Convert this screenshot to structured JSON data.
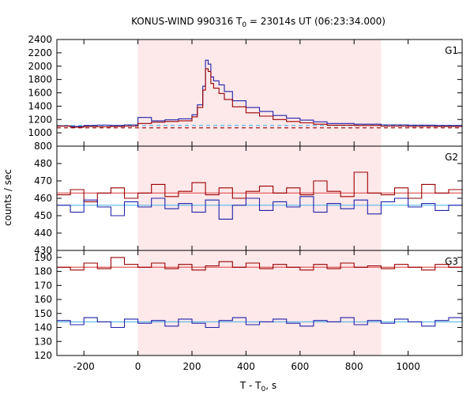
{
  "chart_data": {
    "type": "line",
    "title": {
      "prefix": "KONUS-WIND 990316 T",
      "sub": "0",
      "suffix": " = 23014s UT (06:23:34.000)"
    },
    "xlabel": {
      "prefix": "T - T",
      "sub": "0",
      "suffix": ", s"
    },
    "ylabel": "counts / sec",
    "xlim": [
      -300,
      1200
    ],
    "xticks": [
      -200,
      0,
      200,
      400,
      600,
      800,
      1000
    ],
    "highlight_interval": [
      0,
      900
    ],
    "colors": {
      "series_red": "#990000",
      "series_blue": "#2222aa",
      "fit_red": "#e06060",
      "fit_blue": "#55b8e8",
      "highlight": "#fde8ea"
    },
    "panels": [
      {
        "label": "G1",
        "ylim": [
          800,
          2400
        ],
        "yticks": [
          800,
          1000,
          1200,
          1400,
          1600,
          1800,
          2000,
          2200,
          2400
        ],
        "series": [
          {
            "color": "series_blue",
            "x": [
              -300,
              -250,
              -200,
              -150,
              -100,
              -50,
              0,
              50,
              100,
              150,
              200,
              220,
              240,
              250,
              260,
              270,
              280,
              300,
              320,
              350,
              400,
              450,
              500,
              550,
              600,
              650,
              700,
              800,
              900,
              1000,
              1100,
              1200
            ],
            "y": [
              1105,
              1095,
              1110,
              1115,
              1110,
              1120,
              1230,
              1180,
              1195,
              1210,
              1270,
              1420,
              1700,
              2090,
              2030,
              1840,
              1780,
              1720,
              1620,
              1480,
              1380,
              1320,
              1260,
              1220,
              1190,
              1165,
              1140,
              1130,
              1120,
              1115,
              1110,
              1105
            ]
          },
          {
            "color": "series_red",
            "x": [
              -300,
              -250,
              -200,
              -150,
              -100,
              -50,
              0,
              50,
              100,
              150,
              200,
              220,
              240,
              250,
              260,
              270,
              280,
              300,
              320,
              350,
              400,
              450,
              500,
              550,
              600,
              650,
              700,
              800,
              900,
              1000,
              1100,
              1200
            ],
            "y": [
              1100,
              1085,
              1095,
              1090,
              1095,
              1100,
              1140,
              1160,
              1170,
              1180,
              1240,
              1380,
              1640,
              1960,
              1920,
              1740,
              1670,
              1590,
              1500,
              1390,
              1300,
              1250,
              1200,
              1170,
              1150,
              1130,
              1115,
              1110,
              1100,
              1095,
              1095,
              1090
            ]
          }
        ],
        "fits": [
          {
            "color": "fit_blue",
            "dashed": true,
            "x": [
              -300,
              1200
            ],
            "y": [
              1110,
              1110
            ]
          },
          {
            "color": "series_red",
            "dashed": true,
            "x": [
              -300,
              1200
            ],
            "y": [
              1075,
              1075
            ]
          }
        ]
      },
      {
        "label": "G2",
        "ylim": [
          430,
          490
        ],
        "yticks": [
          430,
          440,
          450,
          460,
          470,
          480
        ],
        "series": [
          {
            "color": "series_red",
            "x": [
              -300,
              -250,
              -200,
              -150,
              -100,
              -50,
              0,
              50,
              100,
              150,
              200,
              250,
              300,
              350,
              400,
              450,
              500,
              550,
              600,
              650,
              700,
              750,
              800,
              850,
              900,
              950,
              1000,
              1050,
              1100,
              1150,
              1200
            ],
            "y": [
              462,
              465,
              458,
              463,
              466,
              460,
              463,
              468,
              461,
              464,
              469,
              462,
              466,
              460,
              464,
              467,
              463,
              466,
              462,
              470,
              464,
              461,
              475,
              463,
              462,
              466,
              460,
              468,
              463,
              465,
              462
            ]
          },
          {
            "color": "series_blue",
            "x": [
              -300,
              -250,
              -200,
              -150,
              -100,
              -50,
              0,
              50,
              100,
              150,
              200,
              250,
              300,
              350,
              400,
              450,
              500,
              550,
              600,
              650,
              700,
              750,
              800,
              850,
              900,
              950,
              1000,
              1050,
              1100,
              1150,
              1200
            ],
            "y": [
              456,
              452,
              459,
              455,
              450,
              458,
              455,
              460,
              454,
              457,
              452,
              459,
              448,
              456,
              460,
              453,
              458,
              455,
              461,
              452,
              457,
              454,
              459,
              451,
              458,
              460,
              455,
              457,
              453,
              456,
              455
            ]
          }
        ],
        "fits": [
          {
            "color": "fit_red",
            "dashed": false,
            "x": [
              -300,
              1200
            ],
            "y": [
              463,
              463
            ]
          },
          {
            "color": "fit_blue",
            "dashed": false,
            "x": [
              -300,
              1200
            ],
            "y": [
              456,
              456
            ]
          }
        ]
      },
      {
        "label": "G3",
        "ylim": [
          120,
          195
        ],
        "yticks": [
          120,
          130,
          140,
          150,
          160,
          170,
          180,
          190
        ],
        "series": [
          {
            "color": "series_red",
            "x": [
              -300,
              -250,
              -200,
              -150,
              -100,
              -50,
              0,
              50,
              100,
              150,
              200,
              250,
              300,
              350,
              400,
              450,
              500,
              550,
              600,
              650,
              700,
              750,
              800,
              850,
              900,
              950,
              1000,
              1050,
              1100,
              1150,
              1200
            ],
            "y": [
              183,
              181,
              186,
              182,
              190,
              185,
              183,
              186,
              182,
              185,
              181,
              184,
              187,
              183,
              186,
              182,
              185,
              183,
              181,
              185,
              182,
              186,
              183,
              184,
              182,
              185,
              183,
              181,
              185,
              183,
              184
            ]
          },
          {
            "color": "series_blue",
            "x": [
              -300,
              -250,
              -200,
              -150,
              -100,
              -50,
              0,
              50,
              100,
              150,
              200,
              250,
              300,
              350,
              400,
              450,
              500,
              550,
              600,
              650,
              700,
              750,
              800,
              850,
              900,
              950,
              1000,
              1050,
              1100,
              1150,
              1200
            ],
            "y": [
              145,
              142,
              147,
              144,
              140,
              146,
              143,
              145,
              141,
              146,
              143,
              140,
              145,
              147,
              142,
              144,
              146,
              143,
              141,
              145,
              144,
              147,
              142,
              145,
              143,
              146,
              144,
              141,
              145,
              147,
              144
            ]
          }
        ],
        "fits": [
          {
            "color": "fit_red",
            "dashed": false,
            "x": [
              -300,
              1200
            ],
            "y": [
              183,
              183
            ]
          },
          {
            "color": "fit_blue",
            "dashed": false,
            "x": [
              -300,
              1200
            ],
            "y": [
              144,
              144
            ]
          }
        ]
      }
    ]
  }
}
